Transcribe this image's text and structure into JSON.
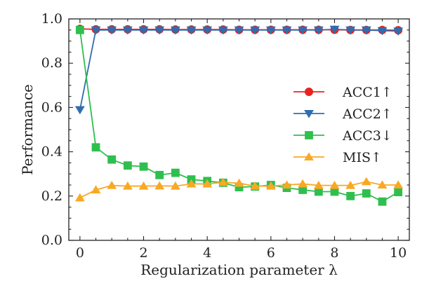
{
  "chart_data": {
    "type": "line",
    "xlabel": "Regularization parameter λ",
    "ylabel": "Performance",
    "xlim": [
      -0.35,
      10.35
    ],
    "ylim": [
      0.0,
      1.0
    ],
    "xticks": [
      0,
      2,
      4,
      6,
      8,
      10
    ],
    "yticks": [
      0.0,
      0.2,
      0.4,
      0.6,
      0.8,
      1.0
    ],
    "xtick_labels": [
      "0",
      "2",
      "4",
      "6",
      "8",
      "10"
    ],
    "ytick_labels": [
      "0.0",
      "0.2",
      "0.4",
      "0.6",
      "0.8",
      "1.0"
    ],
    "grid": false,
    "legend_position": "center-right",
    "x": [
      0,
      0.5,
      1,
      1.5,
      2,
      2.5,
      3,
      3.5,
      4,
      4.5,
      5,
      5.5,
      6,
      6.5,
      7,
      7.5,
      8,
      8.5,
      9,
      9.5,
      10
    ],
    "series": [
      {
        "name": "ACC1↑",
        "color": "#e8231f",
        "marker": "circle",
        "values": [
          0.955,
          0.953,
          0.953,
          0.953,
          0.953,
          0.953,
          0.952,
          0.952,
          0.952,
          0.952,
          0.951,
          0.951,
          0.951,
          0.951,
          0.951,
          0.951,
          0.951,
          0.95,
          0.95,
          0.95,
          0.949
        ]
      },
      {
        "name": "ACC2↑",
        "color": "#2f6db0",
        "marker": "triangle-down",
        "values": [
          0.59,
          0.95,
          0.95,
          0.95,
          0.95,
          0.95,
          0.95,
          0.95,
          0.95,
          0.95,
          0.95,
          0.95,
          0.95,
          0.95,
          0.95,
          0.95,
          0.953,
          0.95,
          0.95,
          0.947,
          0.945
        ]
      },
      {
        "name": "ACC3↓",
        "color": "#2fbf4f",
        "marker": "square",
        "values": [
          0.95,
          0.42,
          0.365,
          0.338,
          0.333,
          0.295,
          0.305,
          0.275,
          0.268,
          0.26,
          0.24,
          0.243,
          0.25,
          0.237,
          0.228,
          0.22,
          0.22,
          0.2,
          0.212,
          0.175,
          0.218
        ]
      },
      {
        "name": "MIS↑",
        "color": "#f9a825",
        "marker": "triangle-up",
        "values": [
          0.192,
          0.228,
          0.248,
          0.245,
          0.245,
          0.246,
          0.245,
          0.255,
          0.255,
          0.262,
          0.258,
          0.245,
          0.245,
          0.25,
          0.255,
          0.248,
          0.248,
          0.248,
          0.265,
          0.25,
          0.25
        ]
      }
    ]
  }
}
